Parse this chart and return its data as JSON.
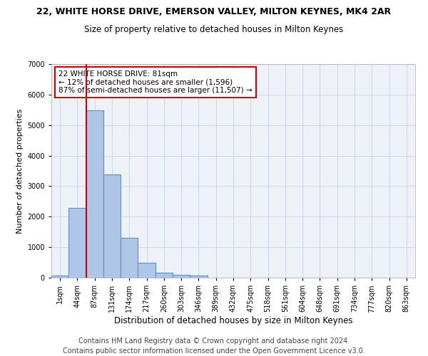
{
  "title1": "22, WHITE HORSE DRIVE, EMERSON VALLEY, MILTON KEYNES, MK4 2AR",
  "title2": "Size of property relative to detached houses in Milton Keynes",
  "xlabel": "Distribution of detached houses by size in Milton Keynes",
  "ylabel": "Number of detached properties",
  "bar_color": "#aec6e8",
  "bar_edge_color": "#5b8fc9",
  "vline_color": "#cc0000",
  "vline_x_index": 2,
  "annotation_text": "22 WHITE HORSE DRIVE: 81sqm\n← 12% of detached houses are smaller (1,596)\n87% of semi-detached houses are larger (11,507) →",
  "annotation_box_color": "white",
  "annotation_box_edge": "#cc0000",
  "tick_labels": [
    "1sqm",
    "44sqm",
    "87sqm",
    "131sqm",
    "174sqm",
    "217sqm",
    "260sqm",
    "303sqm",
    "346sqm",
    "389sqm",
    "432sqm",
    "475sqm",
    "518sqm",
    "561sqm",
    "604sqm",
    "648sqm",
    "691sqm",
    "734sqm",
    "777sqm",
    "820sqm",
    "863sqm"
  ],
  "bar_heights": [
    80,
    2280,
    5480,
    3380,
    1310,
    490,
    175,
    100,
    70,
    0,
    0,
    0,
    0,
    0,
    0,
    0,
    0,
    0,
    0,
    0,
    0
  ],
  "ylim": [
    0,
    7000
  ],
  "yticks": [
    0,
    1000,
    2000,
    3000,
    4000,
    5000,
    6000,
    7000
  ],
  "grid_color": "#d0d8e8",
  "bg_color": "#eef2f8",
  "footer_text": "Contains HM Land Registry data © Crown copyright and database right 2024.\nContains public sector information licensed under the Open Government Licence v3.0.",
  "title1_fontsize": 9,
  "title2_fontsize": 8.5,
  "annotation_fontsize": 7.5,
  "footer_fontsize": 7,
  "ylabel_fontsize": 8,
  "xlabel_fontsize": 8.5,
  "tick_fontsize": 7
}
